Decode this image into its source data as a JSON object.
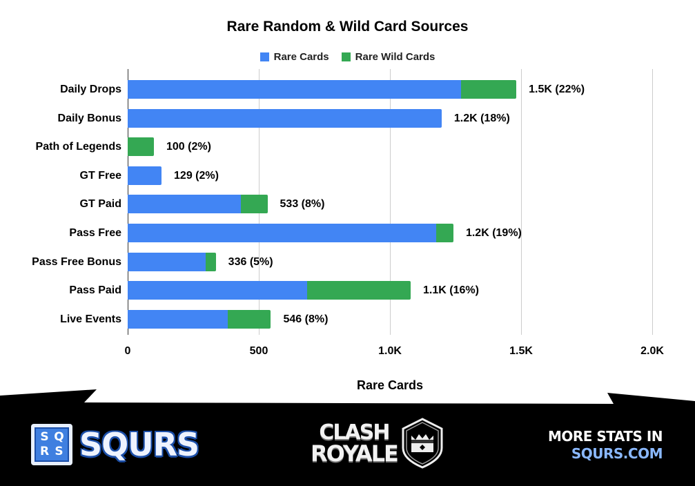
{
  "chart_data": {
    "type": "bar",
    "orientation": "horizontal",
    "stacked": true,
    "title": "Rare Random & Wild Card Sources",
    "xlabel": "Rare Cards",
    "ylabel": "",
    "xlim": [
      0,
      2000
    ],
    "x_ticks": [
      "0",
      "500",
      "1.0K",
      "1.5K",
      "2.0K"
    ],
    "x_tick_values": [
      0,
      500,
      1000,
      1500,
      2000
    ],
    "grid": true,
    "legend_position": "top",
    "categories": [
      "Daily Drops",
      "Daily Bonus",
      "Path of Legends",
      "GT Free",
      "GT Paid",
      "Pass Free",
      "Pass Free Bonus",
      "Pass Paid",
      "Live Events"
    ],
    "series": [
      {
        "name": "Rare Cards",
        "color": "#4285f4",
        "values": [
          1270,
          1197,
          0,
          129,
          432,
          1176,
          297,
          684,
          382
        ]
      },
      {
        "name": "Rare Wild Cards",
        "color": "#34a853",
        "values": [
          212,
          0,
          100,
          0,
          101,
          66,
          39,
          395,
          164
        ]
      }
    ],
    "data_labels": [
      "1.5K (22%)",
      "1.2K (18%)",
      "100 (2%)",
      "129 (2%)",
      "533 (8%)",
      "1.2K (19%)",
      "336 (5%)",
      "1.1K (16%)",
      "546 (8%)"
    ]
  },
  "footer": {
    "brand_box_letters": [
      "S",
      "Q",
      "R",
      "S"
    ],
    "brand_name": "SQURS",
    "game_logo_line1": "CLASH",
    "game_logo_line2": "ROYALE",
    "promo_line1": "MORE STATS IN",
    "promo_line2": "SQURS.COM"
  },
  "colors": {
    "rare_cards": "#4285f4",
    "rare_wild_cards": "#34a853",
    "footer_bg": "#000000",
    "promo_link": "#8ab8ff"
  }
}
